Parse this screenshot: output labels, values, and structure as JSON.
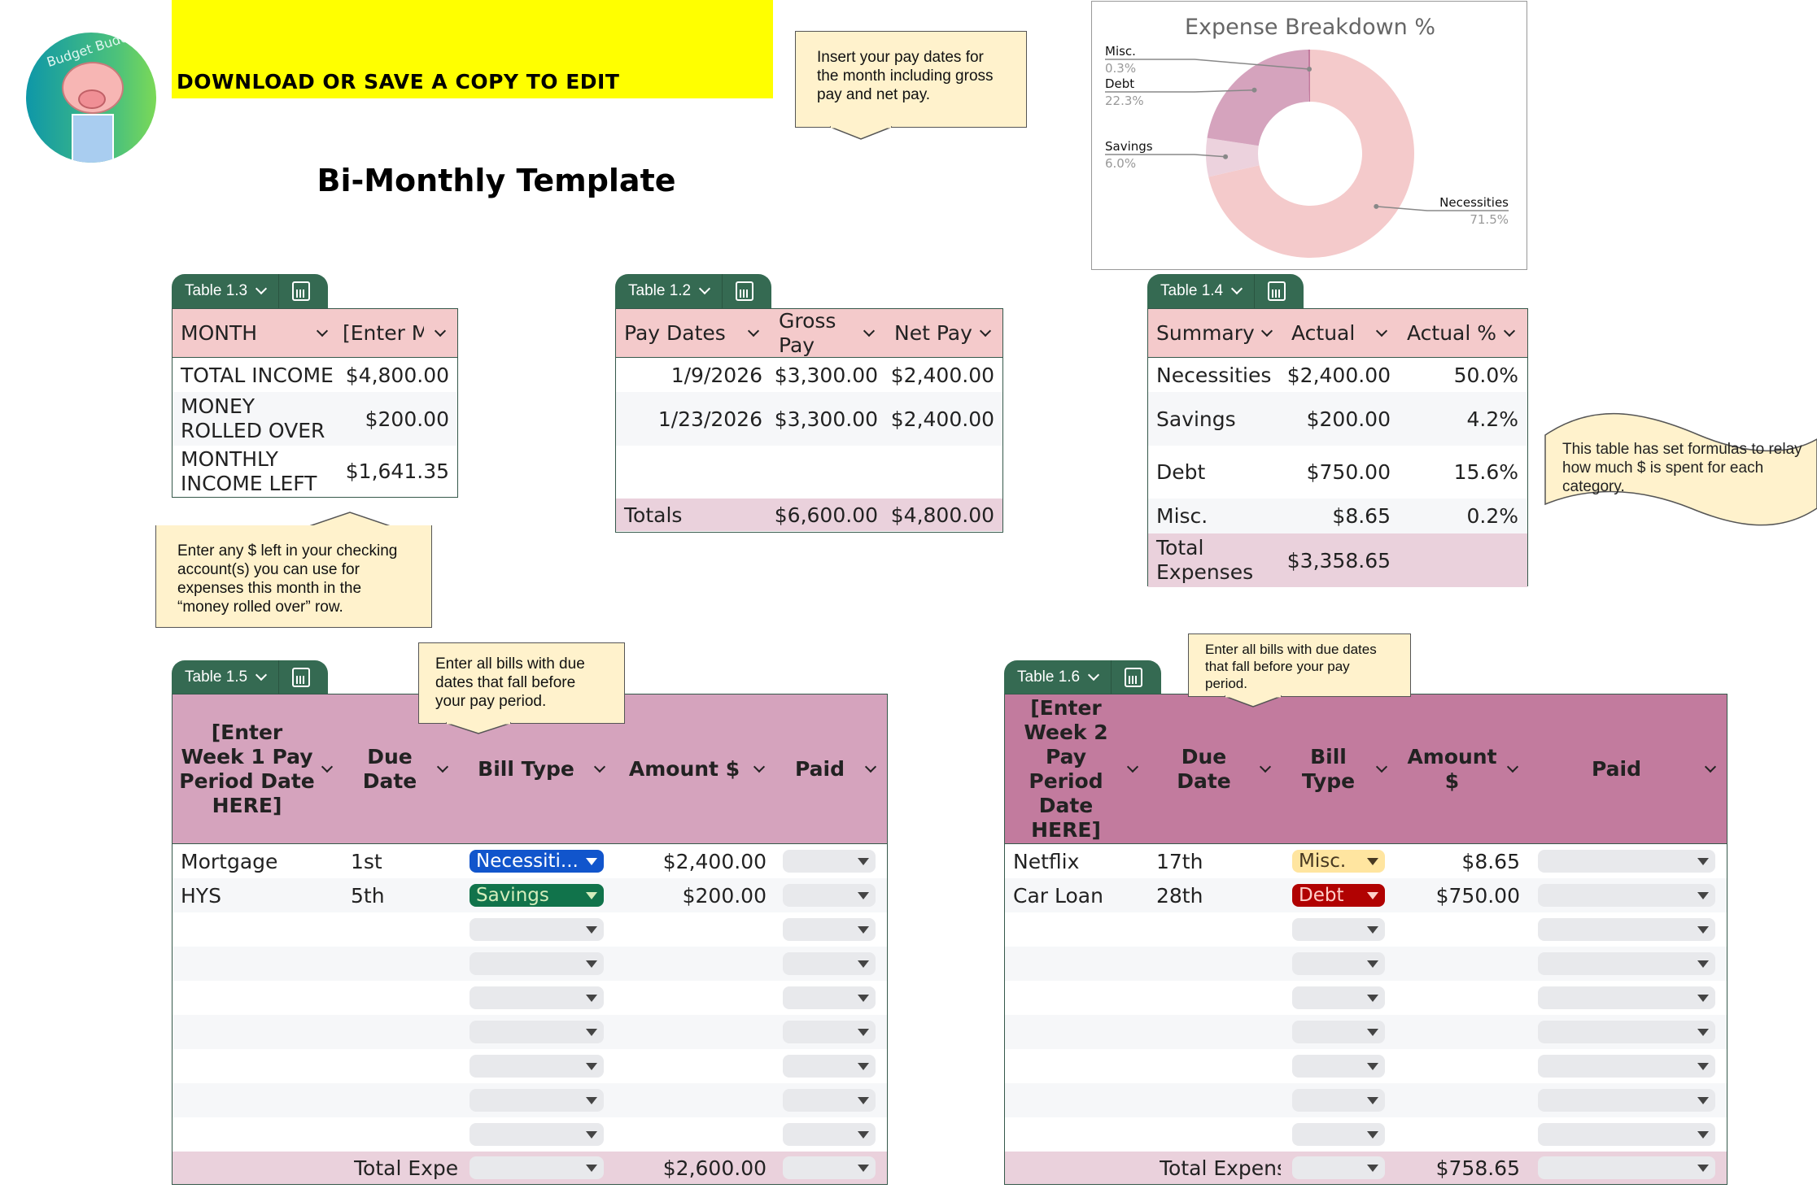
{
  "banner": {
    "text": "DOWNLOAD OR SAVE A COPY TO EDIT",
    "color": "#ffff00"
  },
  "logo": {
    "text": "Budget Buddy"
  },
  "title": "Bi-Monthly Template",
  "callouts": {
    "pay_dates": "Insert your pay dates for the month including gross pay and net pay.",
    "money_rolled": "Enter any $ left in your checking account(s) you can use for expenses this month in the “money rolled over” row.",
    "formulas": "This table has set formulas to relay how much $ is spent for each category.",
    "bills_week1": "Enter all bills with due dates that fall before your pay period.",
    "bills_week2": "Enter all bills with due dates that fall before your pay period."
  },
  "table_1_3": {
    "tab_label": "Table 1.3",
    "headers": [
      "MONTH",
      "[Enter Month]"
    ],
    "rows": [
      {
        "label": "TOTAL INCOME",
        "value": "$4,800.00"
      },
      {
        "label": "MONEY ROLLED OVER",
        "value": "$200.00"
      },
      {
        "label": "MONTHLY INCOME LEFT",
        "value": "$1,641.35"
      }
    ]
  },
  "table_1_2": {
    "tab_label": "Table 1.2",
    "headers": [
      "Pay Dates",
      "Gross Pay",
      "Net Pay"
    ],
    "rows": [
      {
        "date": "1/9/2026",
        "gross": "$3,300.00",
        "net": "$2,400.00"
      },
      {
        "date": "1/23/2026",
        "gross": "$3,300.00",
        "net": "$2,400.00"
      },
      {
        "date": "",
        "gross": "",
        "net": ""
      }
    ],
    "totals": {
      "label": "Totals",
      "gross": "$6,600.00",
      "net": "$4,800.00"
    }
  },
  "table_1_4": {
    "tab_label": "Table 1.4",
    "headers": [
      "Summary",
      "Actual",
      "Actual %"
    ],
    "rows": [
      {
        "label": "Necessities",
        "actual": "$2,400.00",
        "pct": "50.0%"
      },
      {
        "label": "Savings",
        "actual": "$200.00",
        "pct": "4.2%"
      },
      {
        "label": "Debt",
        "actual": "$750.00",
        "pct": "15.6%"
      },
      {
        "label": "Misc.",
        "actual": "$8.65",
        "pct": "0.2%"
      }
    ],
    "total": {
      "label": "Total Expenses",
      "actual": "$3,358.65"
    }
  },
  "table_1_5": {
    "tab_label": "Table 1.5",
    "headers": [
      "[Enter Week 1 Pay Period Date HERE]",
      "Due Date",
      "Bill Type",
      "Amount $",
      "Paid"
    ],
    "rows": [
      {
        "bill": "Mortgage",
        "due": "1st",
        "type": "Necessiti...",
        "type_bg": "#1155cc",
        "type_fg": "#ffffff",
        "amount": "$2,400.00",
        "paid": ""
      },
      {
        "bill": "HYS",
        "due": "5th",
        "type": "Savings",
        "type_bg": "#11734b",
        "type_fg": "#d4edbc",
        "amount": "$200.00",
        "paid": ""
      },
      {
        "bill": "",
        "due": "",
        "type": "",
        "amount": "",
        "paid": ""
      },
      {
        "bill": "",
        "due": "",
        "type": "",
        "amount": "",
        "paid": ""
      },
      {
        "bill": "",
        "due": "",
        "type": "",
        "amount": "",
        "paid": ""
      },
      {
        "bill": "",
        "due": "",
        "type": "",
        "amount": "",
        "paid": ""
      },
      {
        "bill": "",
        "due": "",
        "type": "",
        "amount": "",
        "paid": ""
      },
      {
        "bill": "",
        "due": "",
        "type": "",
        "amount": "",
        "paid": ""
      },
      {
        "bill": "",
        "due": "",
        "type": "",
        "amount": "",
        "paid": ""
      }
    ],
    "total": {
      "label": "Total Expenses",
      "amount": "$2,600.00"
    }
  },
  "table_1_6": {
    "tab_label": "Table 1.6",
    "headers": [
      "[Enter Week 2 Pay Period Date HERE]",
      "Due Date",
      "Bill Type",
      "Amount $",
      "Paid"
    ],
    "rows": [
      {
        "bill": "Netflix",
        "due": "17th",
        "type": "Misc.",
        "type_bg": "#ffe5a0",
        "type_fg": "#473821",
        "amount": "$8.65",
        "paid": ""
      },
      {
        "bill": "Car Loan",
        "due": "28th",
        "type": "Debt",
        "type_bg": "#b10202",
        "type_fg": "#ffcfc9",
        "amount": "$750.00",
        "paid": ""
      },
      {
        "bill": "",
        "due": "",
        "type": "",
        "amount": "",
        "paid": ""
      },
      {
        "bill": "",
        "due": "",
        "type": "",
        "amount": "",
        "paid": ""
      },
      {
        "bill": "",
        "due": "",
        "type": "",
        "amount": "",
        "paid": ""
      },
      {
        "bill": "",
        "due": "",
        "type": "",
        "amount": "",
        "paid": ""
      },
      {
        "bill": "",
        "due": "",
        "type": "",
        "amount": "",
        "paid": ""
      },
      {
        "bill": "",
        "due": "",
        "type": "",
        "amount": "",
        "paid": ""
      },
      {
        "bill": "",
        "due": "",
        "type": "",
        "amount": "",
        "paid": ""
      }
    ],
    "total": {
      "label": "Total Expenses",
      "amount": "$758.65"
    }
  },
  "chart_data": {
    "type": "pie",
    "donut": true,
    "title": "Expense Breakdown %",
    "labels": [
      "Necessities",
      "Savings",
      "Debt",
      "Misc."
    ],
    "values": [
      71.5,
      6.0,
      22.3,
      0.3
    ],
    "value_labels": [
      "71.5%",
      "6.0%",
      "22.3%",
      "0.3%"
    ],
    "colors": [
      "#f4cacb",
      "#ecd2dd",
      "#d5a3bd",
      "#c27b9e"
    ],
    "legend": "callout labels"
  },
  "colors": {
    "tab": "#356a52",
    "header_pink": "#f4cacb",
    "header_mauve": "#d5a3bd",
    "header_mauve_dark": "#c27b9e",
    "total_row": "#ead1dc",
    "callout": "#fff2cc"
  }
}
